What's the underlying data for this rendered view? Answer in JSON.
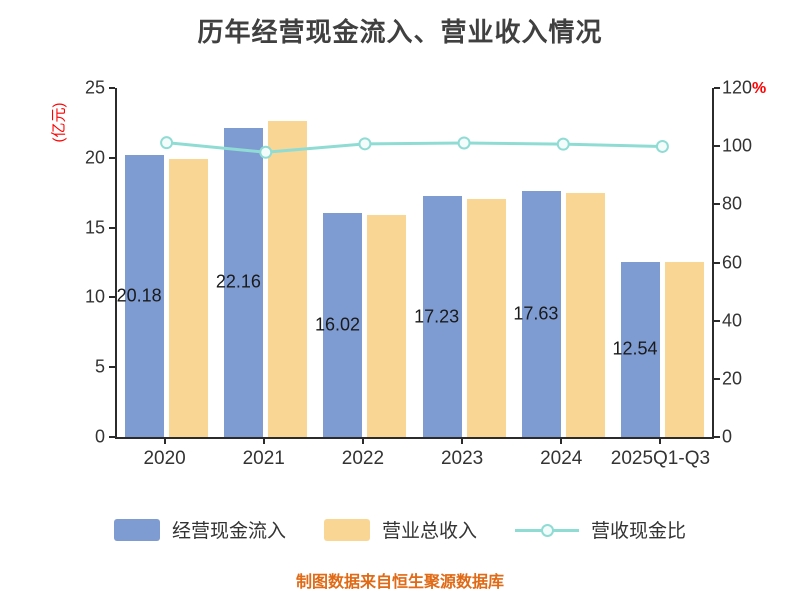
{
  "title": "历年经营现金流入、营业收入情况",
  "footer": "制图数据来自恒生聚源数据库",
  "left_axis": {
    "unit": "(亿元)",
    "min": 0,
    "max": 25,
    "ticks": [
      "25",
      "20",
      "15",
      "10",
      "5",
      "0"
    ]
  },
  "right_axis": {
    "unit": "%",
    "min": 0,
    "max": 120,
    "ticks": [
      "120",
      "100",
      "80",
      "60",
      "40",
      "20",
      "0"
    ]
  },
  "legend": [
    {
      "label": "经营现金流入",
      "color": "#7e9cd2"
    },
    {
      "label": "营业总收入",
      "color": "#fad695"
    },
    {
      "label": "营收现金比",
      "color": "#8fdcd4"
    }
  ],
  "colors": {
    "bar_blue": "#7e9cd2",
    "bar_orange": "#fad695",
    "line_teal": "#8fdcd4",
    "axis_text": "#333333",
    "unit_red": "#ff0000",
    "footer_orange": "#e06a15",
    "title_gray": "#404040"
  },
  "chart_data": {
    "type": "bar",
    "subtype": "grouped-bars-with-line",
    "title": "历年经营现金流入、营业收入情况",
    "categories": [
      "2020",
      "2021",
      "2022",
      "2023",
      "2024",
      "2025Q1-Q3"
    ],
    "series": [
      {
        "name": "经营现金流入",
        "type": "bar",
        "axis": "left",
        "color": "#7e9cd2",
        "values": [
          20.18,
          22.16,
          16.02,
          17.23,
          17.63,
          12.54
        ]
      },
      {
        "name": "营业总收入",
        "type": "bar",
        "axis": "left",
        "color": "#fad695",
        "values": [
          19.95,
          22.63,
          15.9,
          17.05,
          17.5,
          12.55
        ]
      },
      {
        "name": "营收现金比",
        "type": "line",
        "axis": "right",
        "color": "#8fdcd4",
        "values": [
          101.2,
          97.9,
          100.8,
          101.1,
          100.7,
          99.9
        ]
      }
    ],
    "bar_labels": [
      "20.18",
      "22.16",
      "16.02",
      "17.23",
      "17.63",
      "12.54"
    ],
    "xlabel": "",
    "ylabel_left": "(亿元)",
    "ylabel_right": "%",
    "ylim_left": [
      0,
      25
    ],
    "ylim_right": [
      0,
      120
    ],
    "grid": false,
    "legend_position": "bottom"
  }
}
